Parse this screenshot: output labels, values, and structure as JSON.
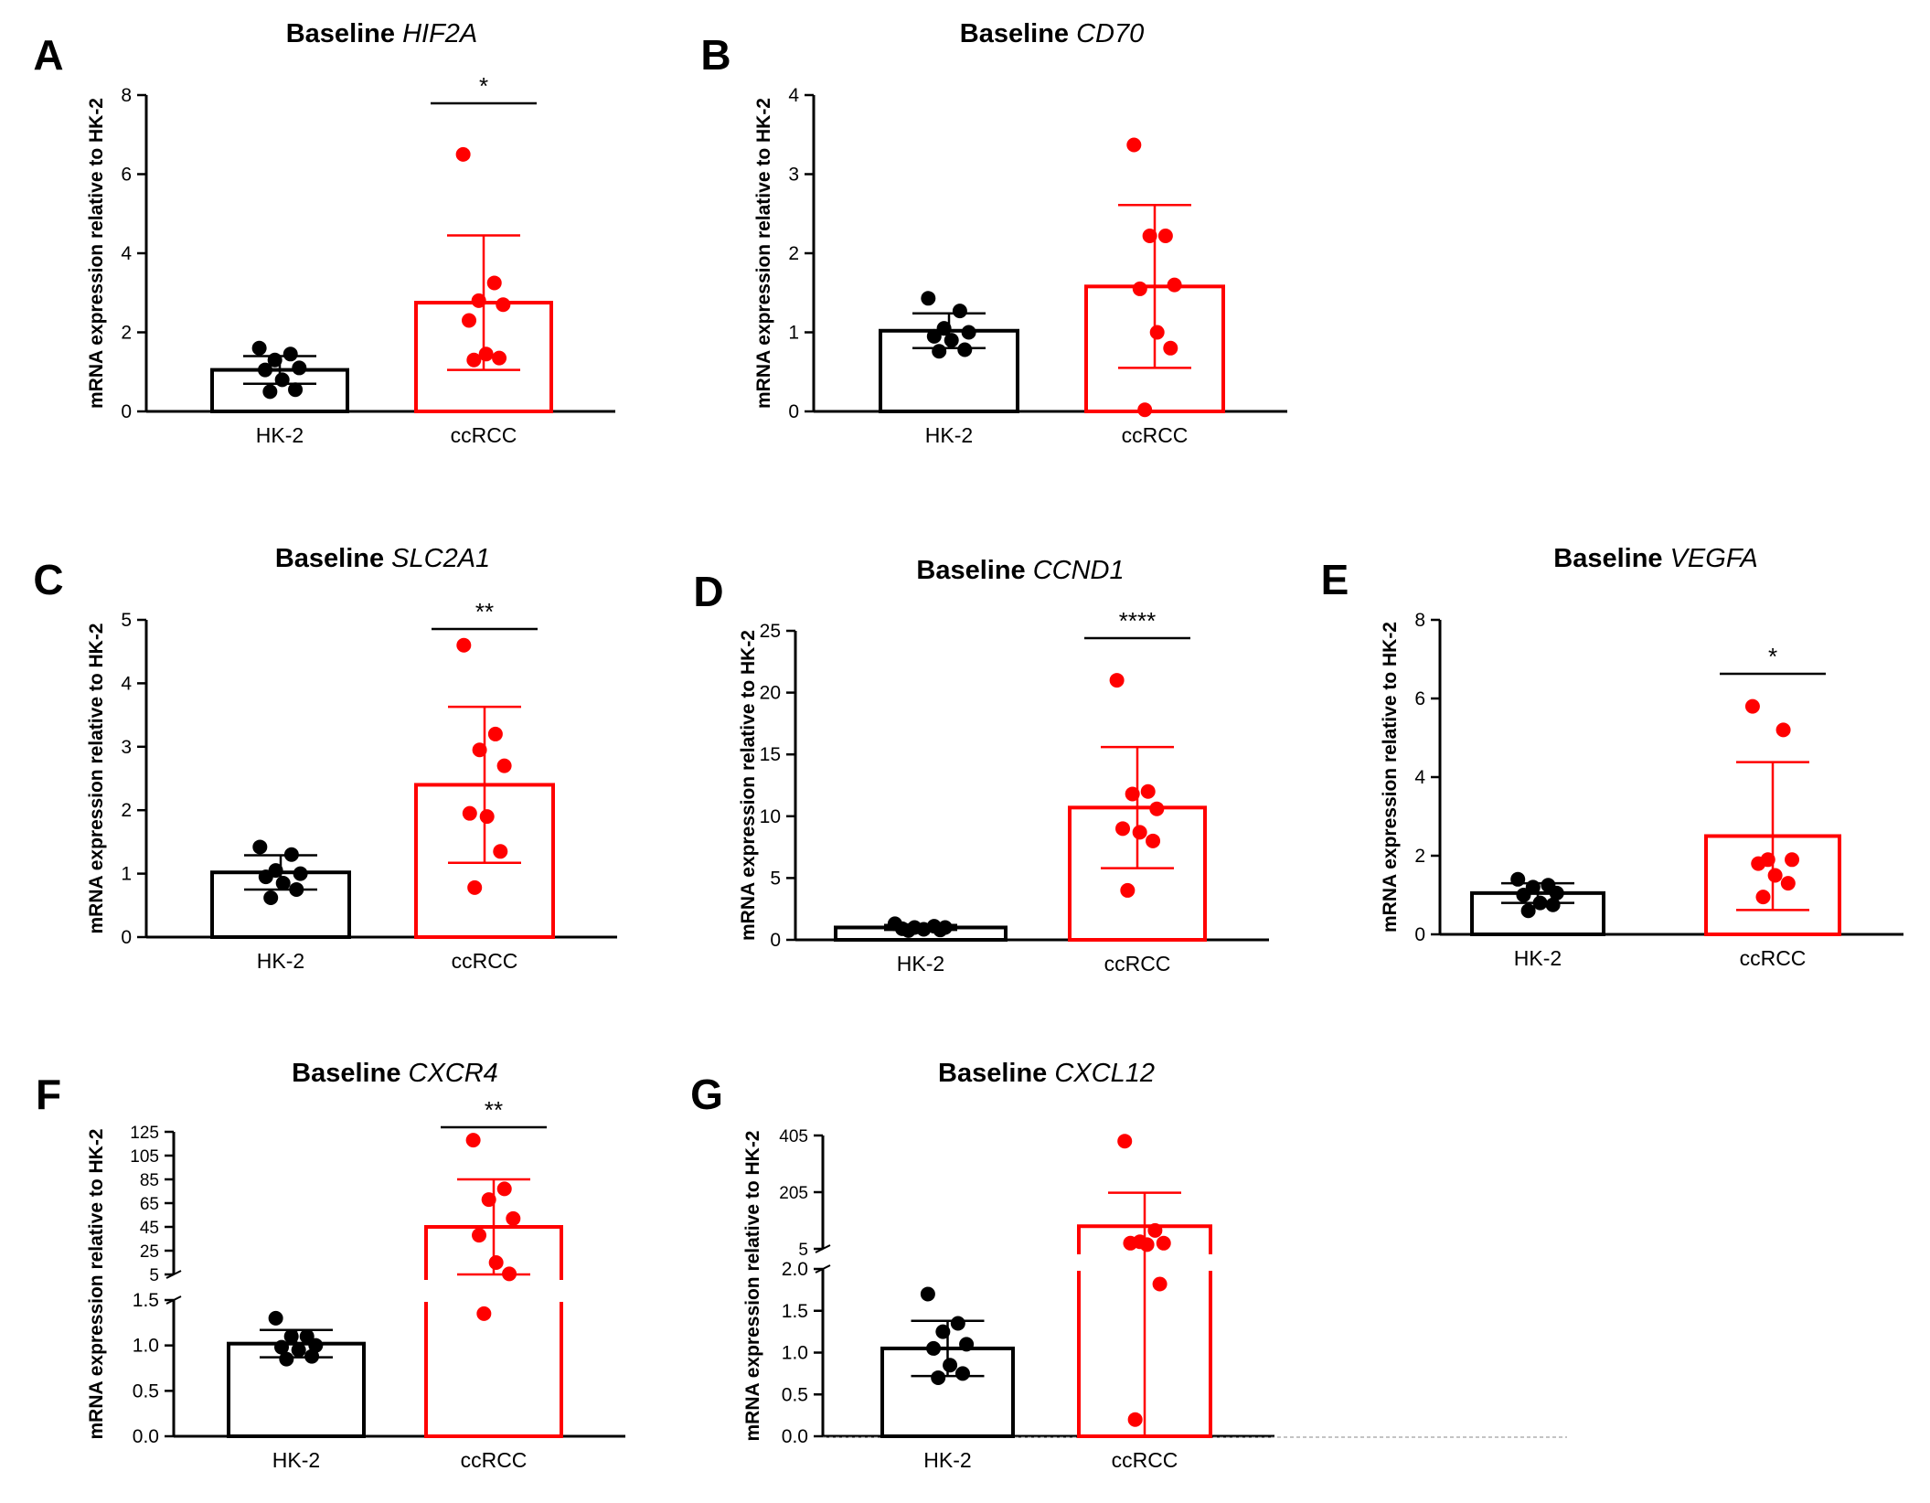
{
  "colors": {
    "hk2": "#000000",
    "ccrcc": "#ff0000"
  },
  "chart_data": [
    {
      "panel": "A",
      "type": "bar",
      "title_prefix": "Baseline ",
      "title_gene": "HIF2A",
      "ylabel": "mRNA expression relative to HK-2",
      "ylim": [
        0,
        8
      ],
      "yticks": [
        0,
        2,
        4,
        6,
        8
      ],
      "categories": [
        "HK-2",
        "ccRCC"
      ],
      "bars": [
        {
          "name": "HK-2",
          "mean": 1.05,
          "sd": 0.35,
          "points": [
            1.6,
            1.45,
            1.3,
            1.1,
            1.05,
            0.8,
            0.55,
            0.5
          ]
        },
        {
          "name": "ccRCC",
          "mean": 2.75,
          "sd": 1.7,
          "points": [
            6.5,
            3.25,
            2.8,
            2.7,
            2.3,
            1.45,
            1.35,
            1.3
          ]
        }
      ],
      "significance": "*"
    },
    {
      "panel": "B",
      "type": "bar",
      "title_prefix": "Baseline ",
      "title_gene": "CD70",
      "ylabel": "mRNA expression relative to HK-2",
      "ylim": [
        0,
        4
      ],
      "yticks": [
        0,
        1,
        2,
        3,
        4
      ],
      "categories": [
        "HK-2",
        "ccRCC"
      ],
      "bars": [
        {
          "name": "HK-2",
          "mean": 1.02,
          "sd": 0.22,
          "points": [
            1.43,
            1.27,
            1.05,
            1.0,
            0.95,
            0.9,
            0.78,
            0.76
          ]
        },
        {
          "name": "ccRCC",
          "mean": 1.58,
          "sd": 1.03,
          "points": [
            3.37,
            2.22,
            2.22,
            1.6,
            1.55,
            1.0,
            0.8,
            0.02
          ]
        }
      ],
      "significance": ""
    },
    {
      "panel": "C",
      "type": "bar",
      "title_prefix": "Baseline ",
      "title_gene": "SLC2A1",
      "ylabel": "mRNA expression relative to HK-2",
      "ylim": [
        0,
        5
      ],
      "yticks": [
        0,
        1,
        2,
        3,
        4,
        5
      ],
      "categories": [
        "HK-2",
        "ccRCC"
      ],
      "bars": [
        {
          "name": "HK-2",
          "mean": 1.02,
          "sd": 0.27,
          "points": [
            1.42,
            1.3,
            1.05,
            1.0,
            0.95,
            0.85,
            0.75,
            0.62
          ]
        },
        {
          "name": "ccRCC",
          "mean": 2.4,
          "sd": 1.23,
          "points": [
            4.6,
            3.2,
            2.95,
            2.7,
            1.95,
            1.9,
            1.35,
            0.78
          ]
        }
      ],
      "significance": "**"
    },
    {
      "panel": "D",
      "type": "bar",
      "title_prefix": "Baseline ",
      "title_gene": "CCND1",
      "ylabel": "mRNA expression relative to HK-2",
      "ylim": [
        0,
        25
      ],
      "yticks": [
        0,
        5,
        10,
        15,
        20,
        25
      ],
      "categories": [
        "HK-2",
        "ccRCC"
      ],
      "bars": [
        {
          "name": "HK-2",
          "mean": 1.0,
          "sd": 0.2,
          "points": [
            1.3,
            1.1,
            1.0,
            1.0,
            0.9,
            0.85,
            0.8,
            0.75
          ]
        },
        {
          "name": "ccRCC",
          "mean": 10.7,
          "sd": 4.9,
          "points": [
            21.0,
            12.0,
            11.8,
            10.6,
            9.0,
            8.7,
            8.0,
            4.0
          ]
        }
      ],
      "significance": "****"
    },
    {
      "panel": "E",
      "type": "bar",
      "title_prefix": "Baseline ",
      "title_gene": "VEGFA",
      "ylabel": "mRNA expression relative to HK-2",
      "ylim": [
        0,
        8
      ],
      "yticks": [
        0,
        2,
        4,
        6,
        8
      ],
      "categories": [
        "HK-2",
        "ccRCC"
      ],
      "bars": [
        {
          "name": "HK-2",
          "mean": 1.05,
          "sd": 0.25,
          "points": [
            1.4,
            1.25,
            1.2,
            1.05,
            1.0,
            0.8,
            0.75,
            0.6
          ]
        },
        {
          "name": "ccRCC",
          "mean": 2.5,
          "sd": 1.88,
          "points": [
            5.8,
            5.2,
            1.9,
            1.9,
            1.8,
            1.5,
            1.3,
            0.95
          ]
        }
      ],
      "significance": "*"
    },
    {
      "panel": "F",
      "type": "bar",
      "title_prefix": "Baseline ",
      "title_gene": "CXCR4",
      "ylabel": "mRNA expression relative to HK-2",
      "axis_break": true,
      "lower_ylim": [
        0,
        1.5
      ],
      "lower_yticks": [
        "0.0",
        "0.5",
        "1.0",
        "1.5"
      ],
      "upper_ylim": [
        5,
        125
      ],
      "upper_yticks": [
        "5",
        "25",
        "45",
        "65",
        "85",
        "105",
        "125"
      ],
      "categories": [
        "HK-2",
        "ccRCC"
      ],
      "bars": [
        {
          "name": "HK-2",
          "mean": 1.02,
          "sd": 0.15,
          "points": [
            1.3,
            1.1,
            1.1,
            1.0,
            0.98,
            0.95,
            0.88,
            0.85
          ]
        },
        {
          "name": "ccRCC",
          "mean": 45,
          "sd": 40,
          "points": [
            118,
            77,
            68,
            52,
            38,
            15,
            5.5,
            1.35
          ]
        }
      ],
      "significance": "**"
    },
    {
      "panel": "G",
      "type": "bar",
      "title_prefix": "Baseline ",
      "title_gene": "CXCL12",
      "ylabel": "mRNA expression relative to HK-2",
      "axis_break": true,
      "lower_ylim": [
        0,
        2.0
      ],
      "lower_yticks": [
        "0.0",
        "0.5",
        "1.0",
        "1.5",
        "2.0"
      ],
      "upper_ylim": [
        5,
        405
      ],
      "upper_yticks": [
        "5",
        "205",
        "405"
      ],
      "categories": [
        "HK-2",
        "ccRCC"
      ],
      "bars": [
        {
          "name": "HK-2",
          "mean": 1.05,
          "sd": 0.33,
          "points": [
            1.7,
            1.35,
            1.25,
            1.1,
            1.05,
            0.85,
            0.75,
            0.7
          ]
        },
        {
          "name": "ccRCC",
          "mean": 85,
          "sd": 118,
          "points": [
            385,
            70,
            30,
            25,
            25,
            20,
            1.82,
            0.2
          ]
        }
      ],
      "significance": ""
    }
  ]
}
